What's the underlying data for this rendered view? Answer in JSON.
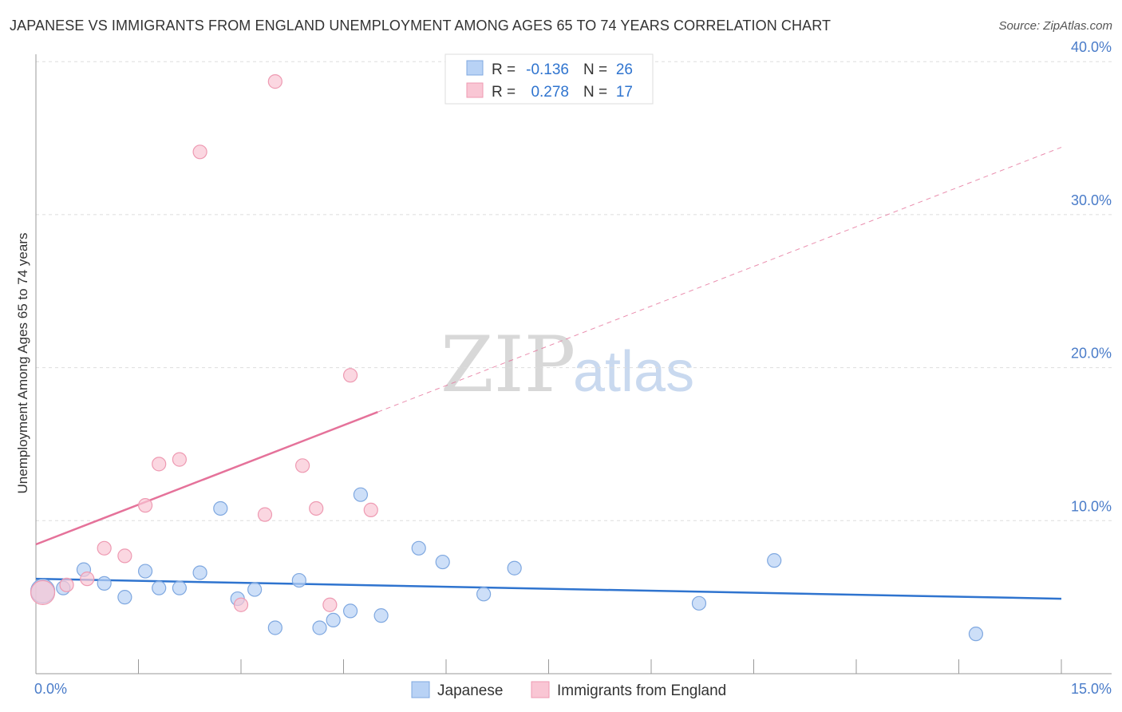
{
  "title": "JAPANESE VS IMMIGRANTS FROM ENGLAND UNEMPLOYMENT AMONG AGES 65 TO 74 YEARS CORRELATION CHART",
  "source": "Source: ZipAtlas.com",
  "watermark": {
    "zip": "ZIP",
    "atlas": "atlas"
  },
  "legend": {
    "r_label": "R =",
    "n_label": "N =",
    "rows": [
      {
        "series": "Japanese",
        "r": "-0.136",
        "n": "26"
      },
      {
        "series": "Immigrants from England",
        "r": "0.278",
        "n": "17"
      }
    ]
  },
  "colors": {
    "japanese_fill": "#b8d2f5",
    "japanese_stroke": "#7fa8e0",
    "japanese_line": "#2f74cf",
    "england_fill": "#f9c6d4",
    "england_stroke": "#ee9ab2",
    "england_line": "#e5729a",
    "tick_text": "#4a7cc9",
    "grid": "#dddddd",
    "value_text": "#2f74cf"
  },
  "chart_data": {
    "type": "scatter",
    "title": "JAPANESE VS IMMIGRANTS FROM ENGLAND UNEMPLOYMENT AMONG AGES 65 TO 74 YEARS CORRELATION CHART",
    "xlabel": "",
    "ylabel": "Unemployment Among Ages 65 to 74 years",
    "xlim": [
      0,
      15
    ],
    "ylim": [
      0,
      41
    ],
    "x_tick_labels": [
      "0.0%",
      "15.0%"
    ],
    "y_ticks": [
      10,
      20,
      30,
      40
    ],
    "y_tick_labels": [
      "10.0%",
      "20.0%",
      "30.0%",
      "40.0%"
    ],
    "grid": true,
    "legend_position": "bottom-center",
    "series": [
      {
        "name": "Japanese",
        "points": [
          {
            "x": 0.1,
            "y": 5.4,
            "size": "large"
          },
          {
            "x": 0.4,
            "y": 5.6
          },
          {
            "x": 0.7,
            "y": 6.8
          },
          {
            "x": 1.0,
            "y": 5.9
          },
          {
            "x": 1.3,
            "y": 5.0
          },
          {
            "x": 1.6,
            "y": 6.7
          },
          {
            "x": 1.8,
            "y": 5.6
          },
          {
            "x": 2.1,
            "y": 5.6
          },
          {
            "x": 2.4,
            "y": 6.6
          },
          {
            "x": 2.7,
            "y": 10.8
          },
          {
            "x": 2.95,
            "y": 4.9
          },
          {
            "x": 3.2,
            "y": 5.5
          },
          {
            "x": 3.5,
            "y": 3.0
          },
          {
            "x": 3.85,
            "y": 6.1
          },
          {
            "x": 4.15,
            "y": 3.0
          },
          {
            "x": 4.35,
            "y": 3.5
          },
          {
            "x": 4.6,
            "y": 4.1
          },
          {
            "x": 4.75,
            "y": 11.7
          },
          {
            "x": 5.05,
            "y": 3.8
          },
          {
            "x": 5.6,
            "y": 8.2
          },
          {
            "x": 5.95,
            "y": 7.3
          },
          {
            "x": 6.55,
            "y": 5.2
          },
          {
            "x": 7.0,
            "y": 6.9
          },
          {
            "x": 9.7,
            "y": 4.6
          },
          {
            "x": 10.8,
            "y": 7.4
          },
          {
            "x": 13.75,
            "y": 2.6
          }
        ],
        "trend": {
          "x": [
            0,
            15
          ],
          "y": [
            6.2,
            4.9
          ],
          "style": "solid"
        }
      },
      {
        "name": "Immigrants from England",
        "points": [
          {
            "x": 0.1,
            "y": 5.3,
            "size": "large"
          },
          {
            "x": 0.45,
            "y": 5.8
          },
          {
            "x": 0.75,
            "y": 6.2
          },
          {
            "x": 1.0,
            "y": 8.2
          },
          {
            "x": 1.3,
            "y": 7.7
          },
          {
            "x": 1.6,
            "y": 11.0
          },
          {
            "x": 1.8,
            "y": 13.7
          },
          {
            "x": 2.1,
            "y": 14.0
          },
          {
            "x": 2.4,
            "y": 34.1
          },
          {
            "x": 3.0,
            "y": 4.5
          },
          {
            "x": 3.35,
            "y": 10.4
          },
          {
            "x": 3.5,
            "y": 38.7
          },
          {
            "x": 3.9,
            "y": 13.6
          },
          {
            "x": 4.1,
            "y": 10.8
          },
          {
            "x": 4.3,
            "y": 4.5
          },
          {
            "x": 4.6,
            "y": 19.5
          },
          {
            "x": 4.9,
            "y": 10.7
          }
        ],
        "trend": {
          "x": [
            0,
            5.0
          ],
          "y": [
            8.45,
            17.1
          ],
          "style": "solid",
          "extension": {
            "x": [
              5.0,
              15
            ],
            "y": [
              17.1,
              34.4
            ],
            "style": "dashed"
          }
        }
      }
    ]
  }
}
